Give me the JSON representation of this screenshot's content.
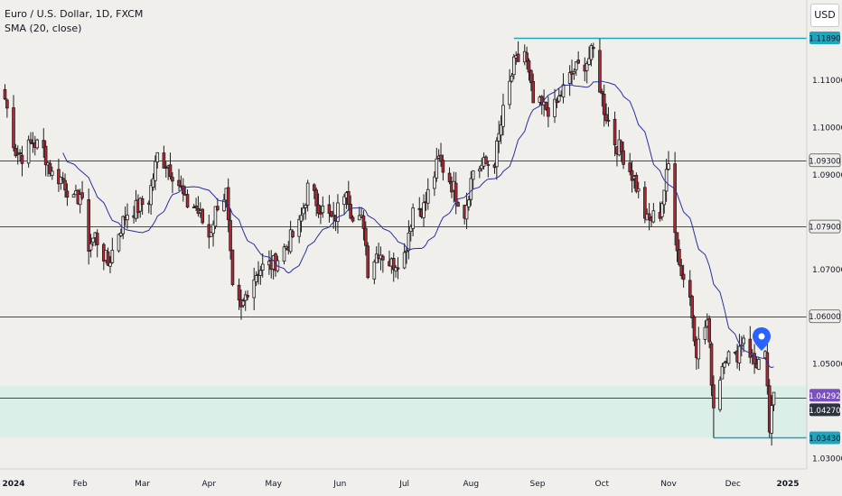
{
  "legend": {
    "symbol": "Euro / U.S. Dollar, 1D, FXCM",
    "indicator": "SMA (20, close)"
  },
  "currency_button": "USD",
  "colors": {
    "background": "#f0efec",
    "up_candle": "#f0efec",
    "down_candle": "#b22834",
    "candle_outline": "#1e1e1e",
    "sma": "#2b2f9e",
    "horizontal_line": "#4a4a4a",
    "cyan_line": "#1fa6bf",
    "zone_fill": "#dbeee8",
    "price_label_purple": "#7b4fbf",
    "price_label_dark": "#2d3241",
    "marker": "#2962ff"
  },
  "chart_data": {
    "type": "candlestick",
    "y_axis": {
      "ticks": [
        "1.11000",
        "1.10000",
        "1.09000",
        "1.07000",
        "1.05000",
        "1.03000"
      ],
      "range": [
        1.0235,
        1.1277
      ]
    },
    "x_axis": {
      "labels": [
        "2024",
        "Feb",
        "Mar",
        "Apr",
        "May",
        "Jun",
        "Jul",
        "Aug",
        "Sep",
        "Oct",
        "Nov",
        "Dec",
        "2025"
      ]
    },
    "price_labels": [
      {
        "value": "1.11890",
        "style": "cyan"
      },
      {
        "value": "1.09300",
        "style": "gray"
      },
      {
        "value": "1.07900",
        "style": "gray"
      },
      {
        "value": "1.06000",
        "style": "gray"
      },
      {
        "value": "1.04292",
        "style": "purple"
      },
      {
        "value": "1.04270",
        "style": "dark"
      },
      {
        "value": "1.03430",
        "style": "cyan"
      }
    ],
    "levels": [
      {
        "price": 1.1189,
        "style": "cyan",
        "from": "2024-08-21",
        "to": "2024-12-31"
      },
      {
        "price": 1.093,
        "style": "gray",
        "from": "2024-01-01",
        "to": "2024-12-31"
      },
      {
        "price": 1.079,
        "style": "gray",
        "from": "2024-01-01",
        "to": "2024-12-31"
      },
      {
        "price": 1.06,
        "style": "gray",
        "from": "2024-01-01",
        "to": "2024-12-31"
      },
      {
        "price": 1.0427,
        "style": "gray",
        "from": "2024-01-01",
        "to": "2024-12-31"
      },
      {
        "price": 1.0343,
        "style": "cyan",
        "from": "2024-11-22",
        "to": "2024-12-31"
      }
    ],
    "zone": {
      "top": 1.0453,
      "bottom": 1.0343
    },
    "close_series": [
      [
        "2023-12-28",
        1.106
      ],
      [
        "2024-01-02",
        1.095
      ],
      [
        "2024-01-05",
        1.094
      ],
      [
        "2024-01-10",
        1.097
      ],
      [
        "2024-01-15",
        1.095
      ],
      [
        "2024-01-19",
        1.09
      ],
      [
        "2024-01-24",
        1.089
      ],
      [
        "2024-01-29",
        1.084
      ],
      [
        "2024-02-01",
        1.086
      ],
      [
        "2024-02-05",
        1.075
      ],
      [
        "2024-02-08",
        1.077
      ],
      [
        "2024-02-14",
        1.071
      ],
      [
        "2024-02-19",
        1.078
      ],
      [
        "2024-02-23",
        1.082
      ],
      [
        "2024-02-28",
        1.083
      ],
      [
        "2024-03-04",
        1.085
      ],
      [
        "2024-03-08",
        1.094
      ],
      [
        "2024-03-13",
        1.092
      ],
      [
        "2024-03-18",
        1.088
      ],
      [
        "2024-03-21",
        1.084
      ],
      [
        "2024-03-26",
        1.083
      ],
      [
        "2024-04-01",
        1.077
      ],
      [
        "2024-04-05",
        1.084
      ],
      [
        "2024-04-09",
        1.086
      ],
      [
        "2024-04-12",
        1.065
      ],
      [
        "2024-04-16",
        1.061
      ],
      [
        "2024-04-19",
        1.066
      ],
      [
        "2024-04-24",
        1.07
      ],
      [
        "2024-05-01",
        1.071
      ],
      [
        "2024-05-07",
        1.075
      ],
      [
        "2024-05-13",
        1.079
      ],
      [
        "2024-05-17",
        1.087
      ],
      [
        "2024-05-23",
        1.083
      ],
      [
        "2024-05-29",
        1.08
      ],
      [
        "2024-06-04",
        1.088
      ],
      [
        "2024-06-07",
        1.08
      ],
      [
        "2024-06-12",
        1.08
      ],
      [
        "2024-06-14",
        1.07
      ],
      [
        "2024-06-19",
        1.074
      ],
      [
        "2024-06-25",
        1.071
      ],
      [
        "2024-07-01",
        1.073
      ],
      [
        "2024-07-05",
        1.083
      ],
      [
        "2024-07-10",
        1.083
      ],
      [
        "2024-07-17",
        1.093
      ],
      [
        "2024-07-22",
        1.089
      ],
      [
        "2024-07-29",
        1.082
      ],
      [
        "2024-08-02",
        1.091
      ],
      [
        "2024-08-07",
        1.092
      ],
      [
        "2024-08-12",
        1.093
      ],
      [
        "2024-08-16",
        1.103
      ],
      [
        "2024-08-21",
        1.113
      ],
      [
        "2024-08-26",
        1.116
      ],
      [
        "2024-08-30",
        1.105
      ],
      [
        "2024-09-04",
        1.104
      ],
      [
        "2024-09-09",
        1.104
      ],
      [
        "2024-09-13",
        1.108
      ],
      [
        "2024-09-18",
        1.112
      ],
      [
        "2024-09-24",
        1.114
      ],
      [
        "2024-09-27",
        1.116
      ],
      [
        "2024-10-02",
        1.104
      ],
      [
        "2024-10-07",
        1.097
      ],
      [
        "2024-10-11",
        1.094
      ],
      [
        "2024-10-16",
        1.089
      ],
      [
        "2024-10-22",
        1.08
      ],
      [
        "2024-10-28",
        1.082
      ],
      [
        "2024-11-01",
        1.092
      ],
      [
        "2024-11-06",
        1.071
      ],
      [
        "2024-11-11",
        1.064
      ],
      [
        "2024-11-14",
        1.053
      ],
      [
        "2024-11-19",
        1.059
      ],
      [
        "2024-11-22",
        1.041
      ],
      [
        "2024-11-27",
        1.052
      ],
      [
        "2024-12-02",
        1.051
      ],
      [
        "2024-12-06",
        1.056
      ],
      [
        "2024-12-11",
        1.05
      ],
      [
        "2024-12-16",
        1.051
      ],
      [
        "2024-12-18",
        1.036
      ],
      [
        "2024-12-20",
        1.0427
      ]
    ]
  }
}
